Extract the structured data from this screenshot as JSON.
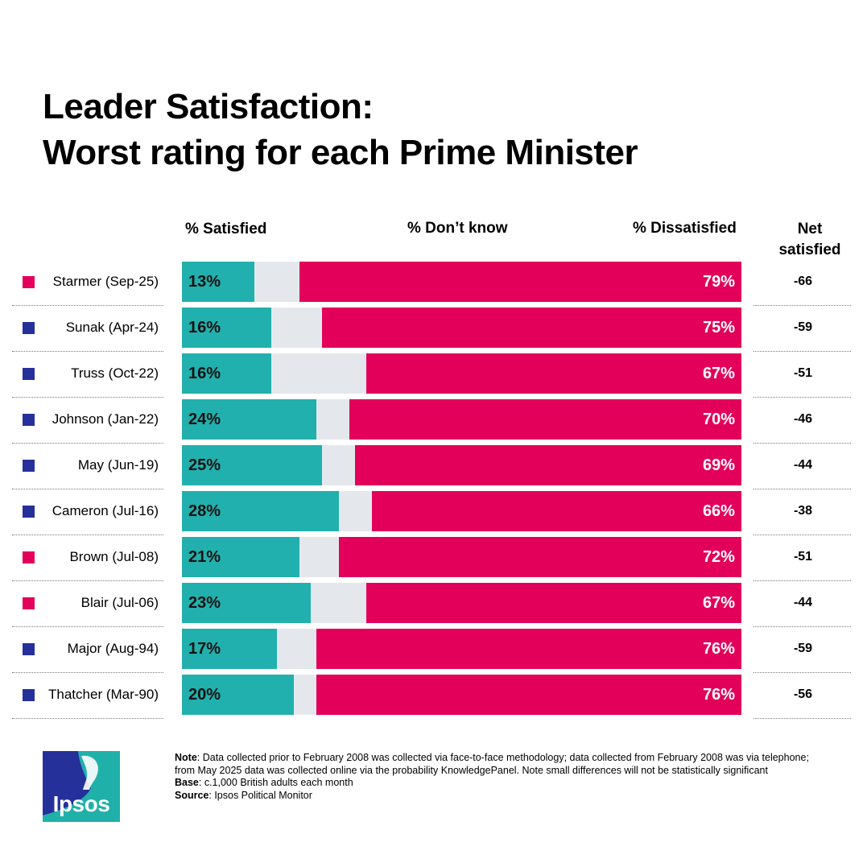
{
  "title": {
    "line1": "Leader Satisfaction:",
    "line2": "Worst rating for each Prime Minister"
  },
  "columns": {
    "satisfied": "% Satisfied",
    "dont_know": "% Don’t know",
    "dissatisfied": "% Dissatisfied",
    "net": "Net satisfied"
  },
  "colors": {
    "satisfied": "#21b0ad",
    "dont_know": "#e4e8ed",
    "dissatisfied": "#e2005a",
    "labour": "#e2005a",
    "conservative": "#25309a"
  },
  "chart_data": {
    "type": "bar",
    "stacked": true,
    "orientation": "horizontal",
    "title": "Leader Satisfaction: Worst rating for each Prime Minister",
    "categories": [
      "Starmer (Sep-25)",
      "Sunak (Apr-24)",
      "Truss (Oct-22)",
      "Johnson (Jan-22)",
      "May (Jun-19)",
      "Cameron (Jul-16)",
      "Brown (Jul-08)",
      "Blair (Jul-06)",
      "Major (Aug-94)",
      "Thatcher (Mar-90)"
    ],
    "party": [
      "labour",
      "conservative",
      "conservative",
      "conservative",
      "conservative",
      "conservative",
      "labour",
      "labour",
      "conservative",
      "conservative"
    ],
    "series": [
      {
        "name": "% Satisfied",
        "values": [
          13,
          16,
          16,
          24,
          25,
          28,
          21,
          23,
          17,
          20
        ]
      },
      {
        "name": "% Don’t know",
        "values": [
          8,
          9,
          17,
          6,
          6,
          6,
          7,
          10,
          7,
          4
        ]
      },
      {
        "name": "% Dissatisfied",
        "values": [
          79,
          75,
          67,
          70,
          69,
          66,
          72,
          67,
          76,
          76
        ]
      }
    ],
    "satisfied_labels": [
      "13%",
      "16%",
      "16%",
      "24%",
      "25%",
      "28%",
      "21%",
      "23%",
      "17%",
      "20%"
    ],
    "dissatisfied_labels": [
      "79%",
      "75%",
      "67%",
      "70%",
      "69%",
      "66%",
      "72%",
      "67%",
      "76%",
      "76%"
    ],
    "net_satisfied": [
      "-66",
      "-59",
      "-51",
      "-46",
      "-44",
      "-38",
      "-51",
      "-44",
      "-59",
      "-56"
    ],
    "xlim": [
      0,
      100
    ]
  },
  "logo": {
    "text": "Ipsos"
  },
  "footnote": {
    "note_label": "Note",
    "note_text": ": Data collected prior to February 2008 was collected via face-to-face methodology; data collected from February 2008 was via telephone; from May 2025 data was collected online via the probability KnowledgePanel. Note small differences will not be statistically significant",
    "base_label": "Base",
    "base_text": ": c.1,000 British adults each month",
    "source_label": "Source",
    "source_text": ": Ipsos Political Monitor"
  }
}
